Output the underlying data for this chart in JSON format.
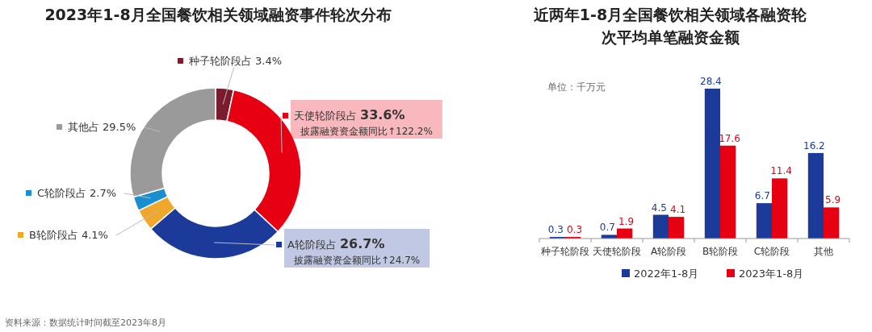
{
  "chart_data": [
    {
      "type": "donut",
      "title": "2023年1-8月全国餐饮相关领域融资事件轮次分布",
      "categories": [
        "种子轮阶段占",
        "天使轮阶段占",
        "A轮阶段占",
        "B轮阶段占",
        "C轮阶段占",
        "其他占"
      ],
      "values": [
        3.4,
        33.6,
        26.7,
        4.1,
        2.7,
        29.5
      ],
      "colors": [
        "#7b1c2e",
        "#e60012",
        "#1c3a9a",
        "#f0a82c",
        "#1a8fd0",
        "#9a9a9a"
      ],
      "value_labels": [
        "3.4%",
        "33.6%",
        "26.7%",
        "4.1%",
        "2.7%",
        "29.5%"
      ],
      "legend": "left",
      "annotations": [
        "资料来源：数据统计时间截至2023年8月",
        {
          "text": "披露融资资金额同比↑122.2%",
          "x": "天使轮阶段占"
        },
        {
          "text": "披露融资资金额同比↑24.7%",
          "x": "A轮阶段占"
        }
      ]
    },
    {
      "type": "bar",
      "title": "近两年1-8月全国餐饮相关领域各融资轮次平均单笔融资金额",
      "categories": [
        "种子轮阶段",
        "天使轮阶段",
        "A轮阶段",
        "B轮阶段",
        "C轮阶段",
        "其他"
      ],
      "series": [
        {
          "name": "2022年1-8月",
          "color": "#1c3a9a",
          "values": [
            0.3,
            0.7,
            4.5,
            28.4,
            6.7,
            16.2
          ]
        },
        {
          "name": "2023年1-8月",
          "color": "#e60012",
          "values": [
            0.3,
            1.9,
            4.1,
            17.6,
            11.4,
            5.9
          ]
        }
      ],
      "data_labels": true,
      "legend": "bottom",
      "annotations": [
        "单位：千万元"
      ]
    }
  ]
}
